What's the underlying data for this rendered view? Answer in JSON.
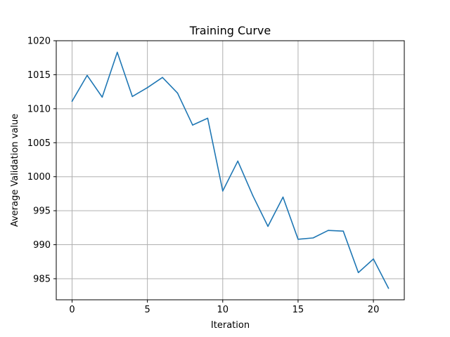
{
  "colors": {
    "series": "#1f77b4",
    "grid": "#b0b0b0",
    "axis": "#000000",
    "background": "#ffffff"
  },
  "chart_data": {
    "type": "line",
    "title": "Training Curve",
    "xlabel": "Iteration",
    "ylabel": "Average Validation value",
    "xlim": [
      -1.05,
      22.05
    ],
    "ylim": [
      981.9,
      1020
    ],
    "grid": true,
    "legend": "none",
    "xticks": [
      0,
      5,
      10,
      15,
      20
    ],
    "yticks": [
      985,
      990,
      995,
      1000,
      1005,
      1010,
      1015,
      1020
    ],
    "x": [
      0,
      1,
      2,
      3,
      4,
      5,
      6,
      7,
      8,
      9,
      10,
      11,
      12,
      13,
      14,
      15,
      16,
      17,
      18,
      19,
      20,
      21
    ],
    "series": [
      {
        "values": [
          1011.1,
          1014.9,
          1011.7,
          1018.3,
          1011.8,
          1013.1,
          1014.6,
          1012.3,
          1007.6,
          1008.6,
          997.9,
          1002.3,
          997.2,
          992.7,
          997.0,
          990.8,
          991.0,
          992.1,
          992.0,
          985.9,
          987.9,
          983.6
        ]
      }
    ]
  }
}
